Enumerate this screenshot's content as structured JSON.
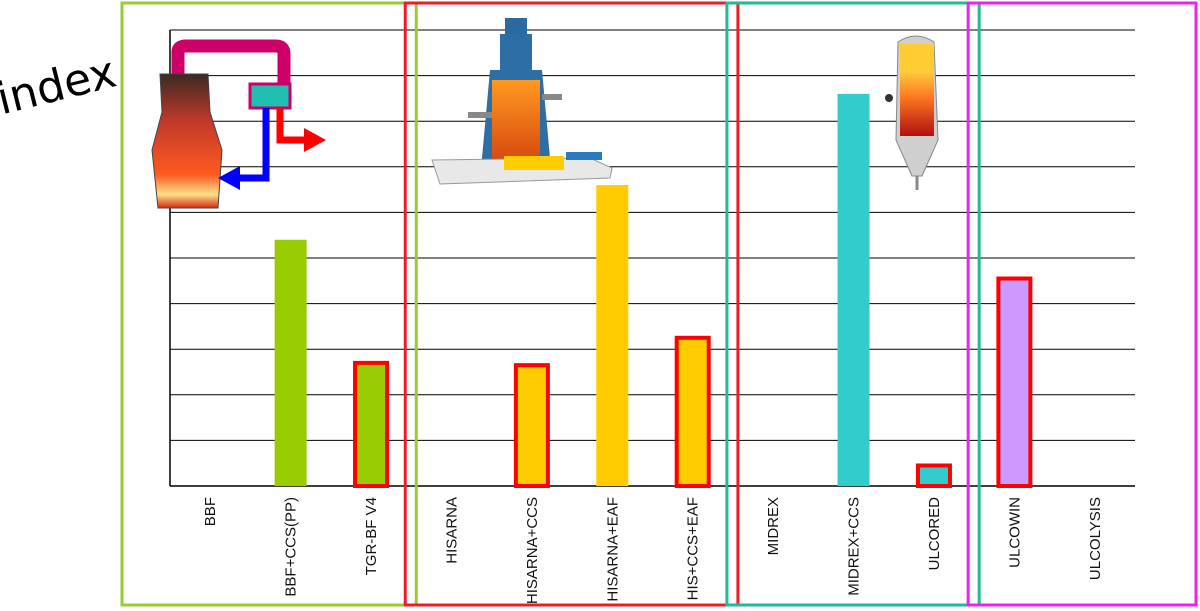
{
  "chart_data": {
    "type": "bar",
    "ylabel": "index",
    "ylim": [
      0,
      10
    ],
    "grid": true,
    "categories": [
      "BBF",
      "BBF+CCS(PP)",
      "TGR-BF V4",
      "HISARNA",
      "HISARNA+CCS",
      "HISARNA+EAF",
      "HIS+CCS+EAF",
      "MIDREX",
      "MIDREX+CCS",
      "ULCORED",
      "ULCOWIN",
      "ULCOLYSIS"
    ],
    "values": [
      null,
      5.4,
      2.7,
      null,
      2.65,
      6.6,
      3.25,
      null,
      8.6,
      0.45,
      4.55,
      null
    ],
    "groups": [
      {
        "members": [
          0,
          1,
          2
        ],
        "box_color": "#99cc33"
      },
      {
        "members": [
          3,
          4,
          5,
          6
        ],
        "box_color": "#ee1c24"
      },
      {
        "members": [
          7,
          8,
          9
        ],
        "box_color": "#22b89a"
      },
      {
        "members": [
          10,
          11
        ],
        "box_color": "#ee22ee"
      }
    ],
    "bar_colors": [
      "#99cc00",
      "#99cc00",
      "#99cc00",
      "#ffcc00",
      "#ffcc00",
      "#ffcc00",
      "#ffcc00",
      "#33cccc",
      "#33cccc",
      "#33cccc",
      "#cc99ff",
      "#cc99ff"
    ],
    "highlighted": [
      false,
      false,
      true,
      false,
      true,
      false,
      true,
      false,
      false,
      true,
      true,
      false
    ],
    "highlight_color": "#ff0000",
    "icons": [
      "blast-furnace-tgr-icon",
      "hisarna-reactor-icon",
      "ulcored-shaft-furnace-icon"
    ]
  }
}
